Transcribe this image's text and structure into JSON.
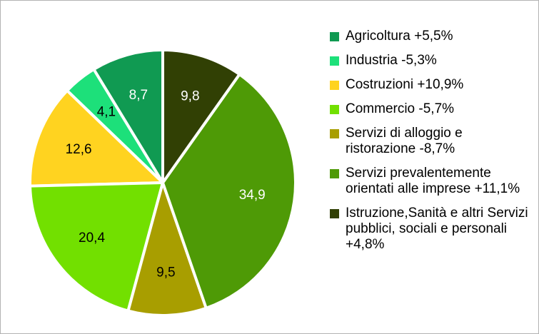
{
  "chart_data": {
    "type": "pie",
    "categories": [
      "Agricoltura +5,5%",
      "Industria -5,3%",
      "Costruzioni +10,9%",
      "Commercio -5,7%",
      "Servizi di alloggio e ristorazione -8,7%",
      "Servizi prevalentemente orientati alle imprese +11,1%",
      "Istruzione,Sanità e altri Servizi pubblici, sociali e personali +4,8%"
    ],
    "values": [
      8.7,
      4.1,
      12.6,
      20.4,
      9.5,
      34.9,
      9.8
    ],
    "value_labels": [
      "8,7",
      "4,1",
      "12,6",
      "20,4",
      "9,5",
      "34,9",
      "9,8"
    ],
    "colors": [
      "#109a52",
      "#1de07a",
      "#ffd320",
      "#72e000",
      "#a89e00",
      "#4e9a06",
      "#314004"
    ],
    "legend": "right"
  }
}
